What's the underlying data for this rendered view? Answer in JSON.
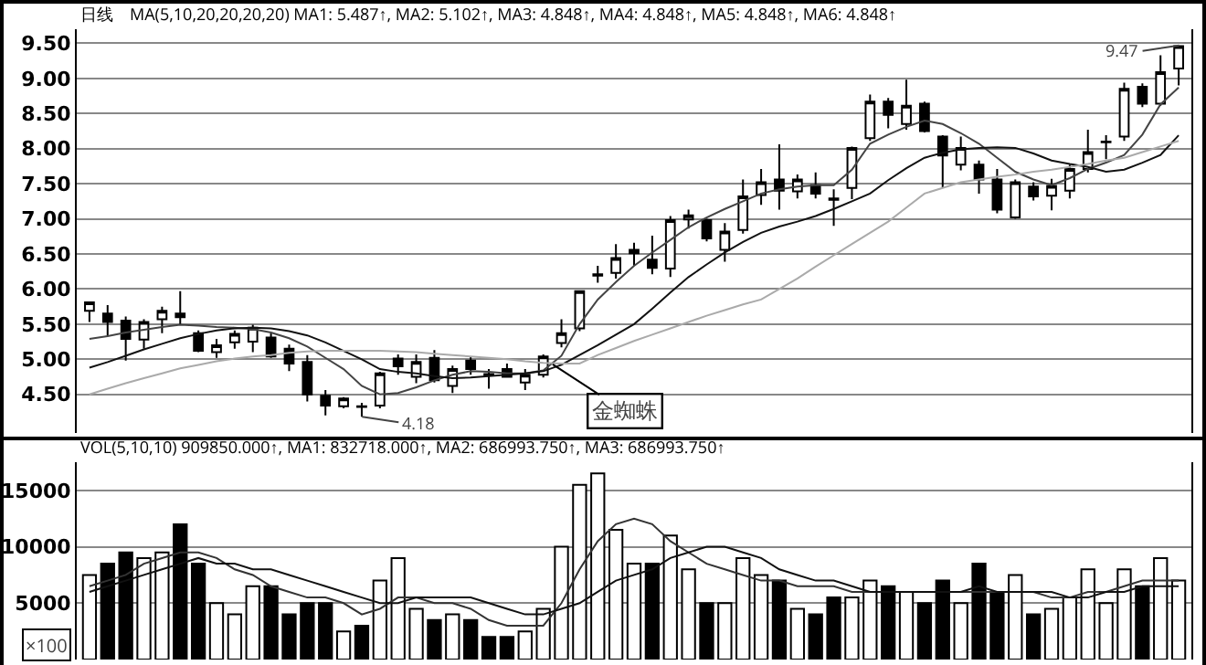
{
  "chart_data": [
    {
      "type": "candlestick",
      "title": "日线",
      "subtitle": "MA(5,10,20,20,20,20) MA1: 5.487↑, MA2: 5.102↑, MA3: 4.848↑, MA4: 4.848↑, MA5: 4.848↑, MA6: 4.848↑",
      "categories": [
        null,
        null,
        null,
        null,
        null,
        null,
        null,
        null,
        null,
        null,
        null,
        null,
        null,
        null,
        null,
        null,
        null,
        null,
        null,
        null,
        null,
        null,
        null,
        null,
        null,
        null,
        null,
        null,
        null,
        null,
        null,
        null,
        null,
        null,
        null,
        null,
        null,
        null,
        null,
        null,
        null,
        null,
        null,
        null,
        null,
        null,
        null,
        null,
        null,
        null,
        null,
        null,
        null,
        null,
        null,
        null,
        null,
        null,
        null,
        null,
        null
      ],
      "ohlc": [
        [
          5.69,
          5.82,
          5.53,
          5.81
        ],
        [
          5.65,
          5.77,
          5.33,
          5.53
        ],
        [
          5.55,
          5.61,
          4.98,
          5.29
        ],
        [
          5.28,
          5.57,
          5.15,
          5.53
        ],
        [
          5.57,
          5.75,
          5.37,
          5.69
        ],
        [
          5.65,
          5.97,
          5.49,
          5.6
        ],
        [
          5.37,
          5.41,
          5.1,
          5.12
        ],
        [
          5.1,
          5.29,
          5.02,
          5.2
        ],
        [
          5.24,
          5.41,
          5.15,
          5.36
        ],
        [
          5.25,
          5.49,
          5.1,
          5.45
        ],
        [
          5.31,
          5.37,
          5.02,
          5.04
        ],
        [
          5.15,
          5.21,
          4.83,
          4.94
        ],
        [
          4.96,
          5.06,
          4.4,
          4.5
        ],
        [
          4.48,
          4.56,
          4.2,
          4.34
        ],
        [
          4.33,
          4.46,
          4.3,
          4.44
        ],
        [
          4.33,
          4.38,
          4.18,
          4.32
        ],
        [
          4.34,
          4.82,
          4.3,
          4.8
        ],
        [
          5.01,
          5.07,
          4.78,
          4.9
        ],
        [
          4.75,
          5.07,
          4.66,
          4.96
        ],
        [
          5.02,
          5.13,
          4.67,
          4.7
        ],
        [
          4.62,
          4.91,
          4.52,
          4.86
        ],
        [
          4.98,
          5.03,
          4.78,
          4.86
        ],
        [
          4.79,
          4.86,
          4.58,
          4.77
        ],
        [
          4.86,
          4.94,
          4.74,
          4.75
        ],
        [
          4.67,
          4.86,
          4.56,
          4.78
        ],
        [
          4.78,
          5.07,
          4.74,
          5.04
        ],
        [
          5.23,
          5.57,
          5.17,
          5.37
        ],
        [
          5.44,
          5.97,
          5.4,
          5.97
        ],
        [
          6.21,
          6.33,
          6.09,
          6.19
        ],
        [
          6.23,
          6.64,
          6.15,
          6.44
        ],
        [
          6.56,
          6.66,
          6.33,
          6.51
        ],
        [
          6.42,
          6.76,
          6.21,
          6.3
        ],
        [
          6.29,
          7.04,
          6.17,
          6.98
        ],
        [
          6.99,
          7.13,
          6.86,
          7.05
        ],
        [
          6.98,
          7.0,
          6.68,
          6.72
        ],
        [
          6.56,
          6.94,
          6.39,
          6.82
        ],
        [
          6.84,
          7.56,
          6.79,
          7.32
        ],
        [
          7.34,
          7.71,
          7.2,
          7.52
        ],
        [
          7.56,
          8.06,
          7.13,
          7.4
        ],
        [
          7.39,
          7.63,
          7.29,
          7.56
        ],
        [
          7.48,
          7.66,
          7.29,
          7.36
        ],
        [
          7.29,
          7.42,
          6.9,
          7.27
        ],
        [
          7.44,
          8.03,
          7.28,
          8.01
        ],
        [
          8.15,
          8.77,
          8.11,
          8.67
        ],
        [
          8.67,
          8.72,
          8.29,
          8.48
        ],
        [
          8.35,
          8.98,
          8.27,
          8.61
        ],
        [
          8.64,
          8.67,
          8.23,
          8.25
        ],
        [
          8.17,
          8.19,
          7.45,
          7.9
        ],
        [
          7.77,
          8.17,
          7.69,
          8.01
        ],
        [
          7.77,
          7.83,
          7.36,
          7.56
        ],
        [
          7.56,
          7.71,
          7.08,
          7.13
        ],
        [
          7.02,
          7.56,
          7.0,
          7.52
        ],
        [
          7.46,
          7.52,
          7.26,
          7.32
        ],
        [
          7.33,
          7.57,
          7.12,
          7.47
        ],
        [
          7.4,
          7.77,
          7.29,
          7.71
        ],
        [
          7.71,
          8.27,
          7.66,
          7.95
        ],
        [
          8.09,
          8.19,
          7.85,
          8.1
        ],
        [
          8.17,
          8.94,
          8.11,
          8.85
        ],
        [
          8.88,
          8.93,
          8.59,
          8.64
        ],
        [
          8.64,
          9.33,
          8.61,
          9.09
        ],
        [
          9.14,
          9.47,
          8.9,
          9.46
        ]
      ],
      "series": [
        {
          "type": "line",
          "color": "#444444",
          "values": [
            5.29,
            5.33,
            5.38,
            5.42,
            5.46,
            5.49,
            5.48,
            5.46,
            5.45,
            5.43,
            5.38,
            5.3,
            5.18,
            5.02,
            4.86,
            4.62,
            4.5,
            4.52,
            4.6,
            4.7,
            4.78,
            4.83,
            4.82,
            4.8,
            4.8,
            4.84,
            5.05,
            5.5,
            5.85,
            6.1,
            6.33,
            6.52,
            6.7,
            6.88,
            7.02,
            7.14,
            7.25,
            7.36,
            7.42,
            7.46,
            7.48,
            7.48,
            7.7,
            8.07,
            8.2,
            8.31,
            8.4,
            8.35,
            8.22,
            8.07,
            7.87,
            7.67,
            7.56,
            7.48,
            7.58,
            7.71,
            7.8,
            7.91,
            8.2,
            8.63,
            8.87
          ]
        },
        {
          "type": "line",
          "color": "#111111",
          "values": [
            4.88,
            4.96,
            5.05,
            5.14,
            5.22,
            5.3,
            5.36,
            5.41,
            5.44,
            5.45,
            5.44,
            5.4,
            5.34,
            5.24,
            5.12,
            5.0,
            4.86,
            4.82,
            4.8,
            4.76,
            4.73,
            4.74,
            4.76,
            4.78,
            4.8,
            4.83,
            4.92,
            5.06,
            5.2,
            5.35,
            5.5,
            5.72,
            5.95,
            6.17,
            6.35,
            6.52,
            6.67,
            6.8,
            6.89,
            6.96,
            7.04,
            7.14,
            7.25,
            7.36,
            7.55,
            7.72,
            7.87,
            7.94,
            7.99,
            8.01,
            8.02,
            8.01,
            7.93,
            7.83,
            7.78,
            7.74,
            7.67,
            7.7,
            7.8,
            7.91,
            8.19
          ]
        },
        {
          "type": "line",
          "color": "#aaaaaa",
          "values": [
            4.5,
            4.58,
            4.66,
            4.73,
            4.8,
            4.87,
            4.92,
            4.97,
            5.01,
            5.04,
            5.06,
            5.09,
            5.11,
            5.12,
            5.12,
            5.12,
            5.12,
            5.11,
            5.1,
            5.08,
            5.06,
            5.04,
            5.02,
            5.0,
            4.97,
            4.95,
            4.94,
            4.94,
            5.06,
            5.16,
            5.26,
            5.35,
            5.44,
            5.53,
            5.62,
            5.7,
            5.78,
            5.85,
            6.0,
            6.15,
            6.32,
            6.48,
            6.64,
            6.8,
            6.96,
            7.16,
            7.36,
            7.44,
            7.52,
            7.56,
            7.6,
            7.63,
            7.67,
            7.7,
            7.74,
            7.78,
            7.83,
            7.87,
            7.95,
            8.03,
            8.11
          ]
        }
      ],
      "ylim": [
        3.95,
        9.7
      ],
      "yticks": [
        {
          "value": 4.5,
          "label": "4.50"
        },
        {
          "value": 5,
          "label": "5.00"
        },
        {
          "value": 5.5,
          "label": "5.50"
        },
        {
          "value": 6,
          "label": "6.00"
        },
        {
          "value": 6.5,
          "label": "6.50"
        },
        {
          "value": 7,
          "label": "7.00"
        },
        {
          "value": 7.5,
          "label": "7.50"
        },
        {
          "value": 8,
          "label": "8.00"
        },
        {
          "value": 8.5,
          "label": "8.50"
        },
        {
          "value": 9,
          "label": "9.00"
        },
        {
          "value": 9.5,
          "label": "9.50"
        }
      ],
      "grid": "y",
      "tick_labels": "y",
      "annotations": [
        "金蜘蛛",
        "4.18",
        "9.47"
      ]
    },
    {
      "type": "bar",
      "title": "VOL(5,10,10) 909850.000↑, MA1: 832718.000↑, MA2: 686993.750↑, MA3: 686993.750↑",
      "categories": [
        null,
        null,
        null,
        null,
        null,
        null,
        null,
        null,
        null,
        null,
        null,
        null,
        null,
        null,
        null,
        null,
        null,
        null,
        null,
        null,
        null,
        null,
        null,
        null,
        null,
        null,
        null,
        null,
        null,
        null,
        null,
        null,
        null,
        null,
        null,
        null,
        null,
        null,
        null,
        null,
        null,
        null,
        null,
        null,
        null,
        null,
        null,
        null,
        null,
        null,
        null,
        null,
        null,
        null,
        null,
        null,
        null,
        null,
        null,
        null,
        null
      ],
      "series": [
        {
          "type": "bar",
          "values": [
            7500,
            8500,
            9500,
            9000,
            9500,
            12000,
            8500,
            5000,
            4000,
            6500,
            6500,
            4000,
            5000,
            5000,
            2500,
            3000,
            7000,
            9000,
            4500,
            3500,
            4000,
            3500,
            2000,
            2000,
            2500,
            4500,
            10000,
            15500,
            16500,
            11500,
            8500,
            8500,
            11000,
            8000,
            5000,
            5000,
            9000,
            7500,
            7000,
            4500,
            4000,
            5500,
            5500,
            7000,
            6500,
            6000,
            5000,
            7000,
            5000,
            8500,
            6000,
            7500,
            4000,
            4500,
            5500,
            8000,
            5000,
            8000,
            6500,
            9000,
            7000
          ],
          "colors": [
            "#ffffff",
            "#000000",
            "#000000",
            "#ffffff",
            "#ffffff",
            "#000000",
            "#000000",
            "#ffffff",
            "#ffffff",
            "#ffffff",
            "#000000",
            "#000000",
            "#000000",
            "#000000",
            "#ffffff",
            "#000000",
            "#ffffff",
            "#ffffff",
            "#ffffff",
            "#000000",
            "#ffffff",
            "#000000",
            "#000000",
            "#000000",
            "#ffffff",
            "#ffffff",
            "#ffffff",
            "#ffffff",
            "#ffffff",
            "#ffffff",
            "#ffffff",
            "#000000",
            "#ffffff",
            "#ffffff",
            "#000000",
            "#ffffff",
            "#ffffff",
            "#ffffff",
            "#000000",
            "#ffffff",
            "#000000",
            "#000000",
            "#ffffff",
            "#ffffff",
            "#000000",
            "#ffffff",
            "#000000",
            "#000000",
            "#ffffff",
            "#000000",
            "#000000",
            "#ffffff",
            "#000000",
            "#ffffff",
            "#ffffff",
            "#ffffff",
            "#ffffff",
            "#ffffff",
            "#000000",
            "#ffffff",
            "#ffffff"
          ]
        },
        {
          "type": "line",
          "color": "#333333",
          "values": [
            6500,
            7000,
            7500,
            8500,
            9000,
            9500,
            9500,
            9000,
            8000,
            7500,
            6500,
            6000,
            5500,
            5500,
            5000,
            4000,
            4500,
            5500,
            5500,
            5000,
            5000,
            4500,
            3500,
            3000,
            3000,
            3000,
            5000,
            8000,
            10500,
            12000,
            12500,
            12000,
            10500,
            9500,
            8500,
            8000,
            7500,
            7000,
            7000,
            6500,
            6500,
            6500,
            6000,
            6000,
            6000,
            6000,
            6000,
            6000,
            6000,
            6000,
            6000,
            6000,
            6000,
            5500,
            5500,
            6000,
            6000,
            6500,
            7000,
            7000,
            7000
          ]
        },
        {
          "type": "line",
          "color": "#111111",
          "values": [
            6000,
            6500,
            7000,
            7500,
            8000,
            8500,
            9000,
            8500,
            8500,
            8000,
            8000,
            7500,
            7000,
            6500,
            6000,
            5500,
            5000,
            5000,
            5500,
            5500,
            5500,
            5500,
            5000,
            4500,
            4000,
            4000,
            4500,
            5000,
            6000,
            7000,
            7500,
            8000,
            9000,
            9500,
            10000,
            10000,
            9500,
            9000,
            8000,
            7500,
            7000,
            7000,
            6500,
            6000,
            6000,
            6000,
            6000,
            6000,
            6000,
            6500,
            6000,
            6000,
            6000,
            6000,
            5500,
            5500,
            6000,
            6000,
            6500,
            6500,
            6500
          ]
        }
      ],
      "ylim": [
        0,
        17500
      ],
      "yticks": [
        5000,
        10000,
        15000
      ],
      "grid": "y",
      "tick_labels": "y",
      "annotations": [
        "×100"
      ]
    }
  ]
}
